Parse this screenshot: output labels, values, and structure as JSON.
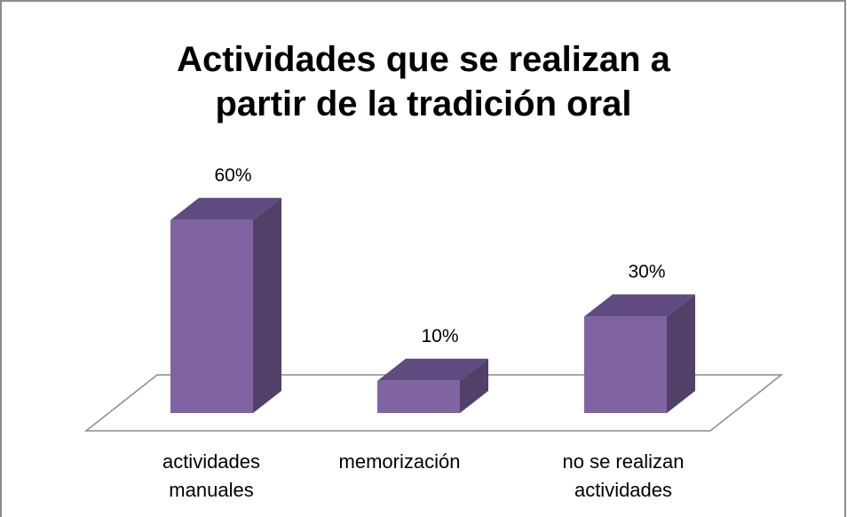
{
  "chart_data": {
    "type": "bar3d",
    "title": "Actividades que se realizan a partir de la tradición oral",
    "categories": [
      "actividades manuales",
      "memorización",
      "no se realizan actividades"
    ],
    "values": [
      60,
      10,
      30
    ],
    "value_labels": [
      "60%",
      "10%",
      "30%"
    ],
    "color": "#8064a2"
  }
}
